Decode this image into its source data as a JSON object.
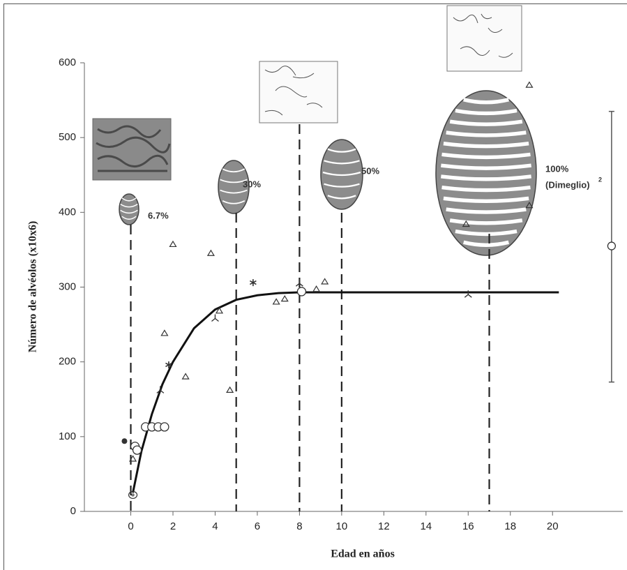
{
  "chart_data": {
    "type": "scatter",
    "xlabel": "Edad en años",
    "ylabel": "Número de alvéolos (x10x6)",
    "xlim": [
      -2.2,
      23.3
    ],
    "ylim": [
      0,
      600
    ],
    "xticks": [
      0,
      2,
      4,
      6,
      8,
      10,
      12,
      14,
      16,
      18,
      20
    ],
    "yticks": [
      0,
      100,
      200,
      300,
      400,
      500,
      600
    ],
    "vlines": [
      0,
      5,
      8,
      10,
      17
    ],
    "annotations": [
      "6.7%",
      "30%",
      "50%",
      "100%",
      "(Dimeglio)",
      "2"
    ],
    "series": [
      {
        "type": "line",
        "color": "#111111",
        "x": [
          0.1,
          0.5,
          1,
          1.5,
          2,
          3,
          4,
          5,
          6,
          7,
          8,
          10,
          20.3
        ],
        "values": [
          25,
          80,
          130,
          170,
          200,
          245,
          270,
          283,
          289,
          292,
          293,
          293,
          293
        ]
      },
      {
        "type": "scatter",
        "marker": "triangle",
        "color": "#333333",
        "x": [
          0.1,
          1.6,
          2,
          2.6,
          3.8,
          4.2,
          4.7,
          6.9,
          7.3,
          8.8,
          9.2,
          15.9,
          18.9,
          18.9
        ],
        "values": [
          70,
          238,
          357,
          180,
          345,
          268,
          162,
          280,
          284,
          297,
          307,
          384,
          570,
          409
        ]
      },
      {
        "type": "scatter",
        "marker": "circle",
        "color": "#333333",
        "x": [
          0.2,
          0.3,
          0.7,
          1,
          1.3,
          1.6,
          8.1
        ],
        "values": [
          87,
          82,
          113,
          113,
          113,
          113,
          294
        ]
      },
      {
        "type": "scatter",
        "marker": "dot",
        "color": "#333333",
        "x": [
          -0.3
        ],
        "values": [
          94
        ]
      },
      {
        "type": "scatter",
        "marker": "asterisk",
        "color": "#333333",
        "x": [
          1.8,
          5.8
        ],
        "values": [
          196,
          306
        ]
      },
      {
        "type": "scatter",
        "marker": "tri",
        "color": "#333333",
        "x": [
          1.4,
          4,
          8,
          16
        ],
        "values": [
          162,
          258,
          305,
          290
        ]
      },
      {
        "type": "scatter",
        "marker": "circled-dot",
        "color": "#333333",
        "x": [
          0.1
        ],
        "values": [
          22
        ]
      },
      {
        "type": "errorbar",
        "color": "#555555",
        "x": [
          22.8
        ],
        "values": [
          355
        ],
        "low": [
          173
        ],
        "high": [
          535
        ]
      }
    ]
  }
}
